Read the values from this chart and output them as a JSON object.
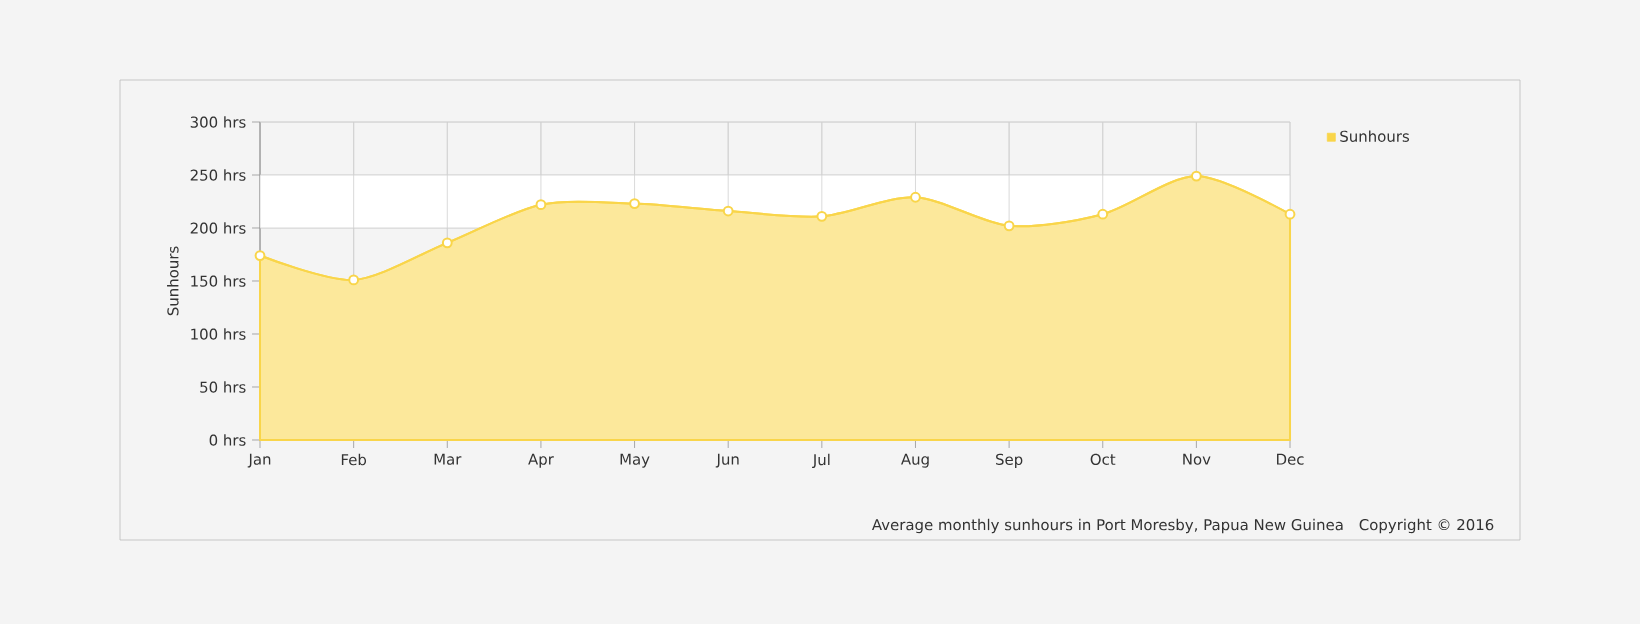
{
  "chart_data": {
    "type": "area",
    "ylabel": "Sunhours",
    "categories": [
      "Jan",
      "Feb",
      "Mar",
      "Apr",
      "May",
      "Jun",
      "Jul",
      "Aug",
      "Sep",
      "Oct",
      "Nov",
      "Dec"
    ],
    "series": [
      {
        "name": "Sunhours",
        "color": "#f9d54a",
        "values": [
          174,
          151,
          186,
          222,
          223,
          216,
          211,
          229,
          202,
          213,
          249,
          213
        ]
      }
    ],
    "ylim": [
      0,
      300
    ],
    "yticks": [
      {
        "value": 0,
        "label": "0 hrs"
      },
      {
        "value": 50,
        "label": "50 hrs"
      },
      {
        "value": 100,
        "label": "100 hrs"
      },
      {
        "value": 150,
        "label": "150 hrs"
      },
      {
        "value": 200,
        "label": "200 hrs"
      },
      {
        "value": 250,
        "label": "250 hrs"
      },
      {
        "value": 300,
        "label": "300 hrs"
      }
    ],
    "bands": [
      {
        "axis": "y",
        "from": 200,
        "to": 250,
        "color": "#ffffff"
      }
    ],
    "grid": true,
    "legend": "top right",
    "marker": "circle",
    "annotations": [
      "Average monthly sunhours in Port Moresby, Papua New Guinea",
      "Copyright © 2016"
    ]
  }
}
